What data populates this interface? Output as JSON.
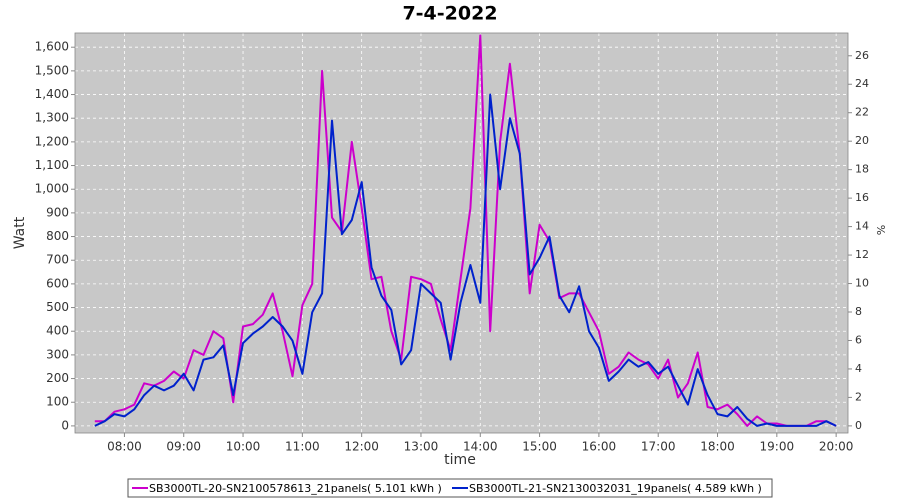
{
  "chart_data": {
    "type": "line",
    "title": "7-4-2022",
    "xlabel": "time",
    "ylabel": "Watt",
    "y2label": "%",
    "x": [
      450,
      460,
      470,
      480,
      490,
      500,
      510,
      520,
      530,
      540,
      550,
      560,
      570,
      580,
      590,
      600,
      610,
      620,
      630,
      640,
      650,
      660,
      670,
      680,
      690,
      700,
      710,
      720,
      730,
      740,
      750,
      760,
      770,
      780,
      790,
      800,
      810,
      820,
      830,
      840,
      850,
      860,
      870,
      880,
      890,
      900,
      910,
      920,
      930,
      940,
      950,
      960,
      970,
      980,
      990,
      1000,
      1010,
      1020,
      1030,
      1040,
      1050,
      1060,
      1070,
      1080,
      1090,
      1100,
      1110,
      1120,
      1130,
      1140,
      1150,
      1160,
      1170,
      1180,
      1190,
      1200
    ],
    "series": [
      {
        "name": "SB3000TL-20-SN2100578613_21panels( 5.101 kWh )",
        "color": "#cc00cc",
        "values": [
          20,
          20,
          60,
          70,
          90,
          180,
          170,
          190,
          230,
          200,
          320,
          300,
          400,
          370,
          100,
          420,
          430,
          470,
          560,
          400,
          210,
          510,
          600,
          1500,
          880,
          820,
          1200,
          920,
          620,
          630,
          400,
          280,
          630,
          620,
          600,
          450,
          320,
          620,
          920,
          1650,
          400,
          1200,
          1530,
          1150,
          560,
          850,
          780,
          540,
          560,
          560,
          480,
          400,
          220,
          250,
          310,
          280,
          260,
          200,
          280,
          120,
          180,
          310,
          80,
          70,
          90,
          50,
          0,
          40,
          10,
          10,
          0,
          0,
          0,
          20,
          20,
          0
        ]
      },
      {
        "name": "SB3000TL-21-SN2130032031_19panels( 4.589 kWh )",
        "color": "#0022cc",
        "values": [
          0,
          20,
          50,
          40,
          70,
          130,
          170,
          150,
          170,
          220,
          150,
          280,
          290,
          340,
          130,
          350,
          390,
          420,
          460,
          420,
          360,
          220,
          480,
          560,
          1290,
          810,
          870,
          1030,
          670,
          550,
          490,
          260,
          320,
          600,
          560,
          520,
          280,
          520,
          680,
          520,
          1400,
          1000,
          1300,
          1150,
          640,
          710,
          800,
          550,
          480,
          590,
          400,
          330,
          190,
          230,
          280,
          250,
          270,
          220,
          250,
          170,
          90,
          240,
          130,
          50,
          40,
          80,
          30,
          0,
          10,
          0,
          0,
          0,
          0,
          0,
          20,
          0
        ]
      }
    ],
    "xlim": [
      430,
      1212
    ],
    "xticks": [
      {
        "value": 480,
        "label": "08:00"
      },
      {
        "value": 540,
        "label": "09:00"
      },
      {
        "value": 600,
        "label": "10:00"
      },
      {
        "value": 660,
        "label": "11:00"
      },
      {
        "value": 720,
        "label": "12:00"
      },
      {
        "value": 780,
        "label": "13:00"
      },
      {
        "value": 840,
        "label": "14:00"
      },
      {
        "value": 900,
        "label": "15:00"
      },
      {
        "value": 960,
        "label": "16:00"
      },
      {
        "value": 1020,
        "label": "17:00"
      },
      {
        "value": 1080,
        "label": "18:00"
      },
      {
        "value": 1140,
        "label": "19:00"
      },
      {
        "value": 1200,
        "label": "20:00"
      }
    ],
    "ylim": [
      -30,
      1660
    ],
    "yticks": [
      0,
      100,
      200,
      300,
      400,
      500,
      600,
      700,
      800,
      900,
      {
        "value": 1000,
        "label": "1,000"
      },
      {
        "value": 1100,
        "label": "1,100"
      },
      {
        "value": 1200,
        "label": "1,200"
      },
      {
        "value": 1300,
        "label": "1,300"
      },
      {
        "value": 1400,
        "label": "1,400"
      },
      {
        "value": 1500,
        "label": "1,500"
      },
      {
        "value": 1600,
        "label": "1,600"
      }
    ],
    "y2lim": [
      -0.5,
      27.6
    ],
    "y2ticks": [
      0,
      2,
      4,
      6,
      8,
      10,
      12,
      14,
      16,
      18,
      20,
      22,
      24,
      26
    ],
    "grid": true,
    "legend": "bottom"
  }
}
